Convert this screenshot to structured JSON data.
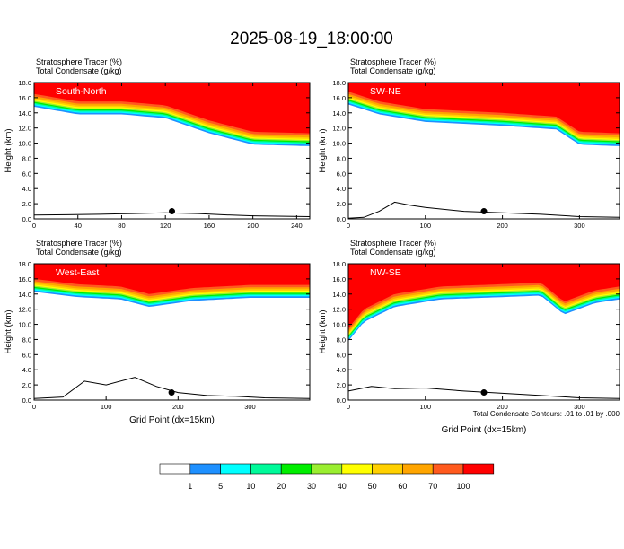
{
  "title": "2025-08-19_18:00:00",
  "colors": {
    "scale": [
      "#ffffff",
      "#1e90ff",
      "#00ffff",
      "#00fa9a",
      "#00ee00",
      "#9aee30",
      "#ffff00",
      "#ffd000",
      "#ffa500",
      "#ff5a1e",
      "#ff0000"
    ],
    "background": "#ffffff"
  },
  "footnote": "Total Condensate Contours: .01 to .01 by .000",
  "legend": {
    "labels": [
      "1",
      "5",
      "10",
      "20",
      "30",
      "40",
      "50",
      "60",
      "70",
      "100"
    ]
  },
  "chart_data": [
    {
      "type": "heatmap",
      "id": "south-north",
      "label": "South-North",
      "header1": "Stratosphere Tracer   (%)",
      "header2": "Total Condensate   (g/kg)",
      "ylabel": "Height (km)",
      "xlabel": "",
      "xlim": [
        0,
        252
      ],
      "ylim": [
        0,
        18
      ],
      "xticks": [
        0,
        40,
        80,
        120,
        160,
        200,
        240
      ],
      "yticks": [
        0,
        2,
        4,
        6,
        8,
        10,
        12,
        14,
        16,
        18
      ],
      "ytick_labels": [
        "0.0",
        "2.0",
        "4.0",
        "6.0",
        "8.0",
        "10.0",
        "12.0",
        "14.0",
        "16.0",
        "18.0"
      ],
      "base_profile": {
        "x": [
          0,
          40,
          80,
          120,
          160,
          200,
          252
        ],
        "y": [
          15.5,
          14.5,
          14.5,
          14.0,
          12.0,
          10.5,
          10.3
        ]
      },
      "terrain": {
        "x": [
          0,
          30,
          60,
          90,
          120,
          150,
          180,
          200,
          252
        ],
        "y": [
          0.5,
          0.55,
          0.6,
          0.7,
          0.8,
          0.7,
          0.5,
          0.4,
          0.3
        ]
      },
      "marker": {
        "x": 126,
        "y": 1.0
      }
    },
    {
      "type": "heatmap",
      "id": "sw-ne",
      "label": "SW-NE",
      "header1": "Stratosphere Tracer   (%)",
      "header2": "Total Condensate   (g/kg)",
      "ylabel": "Height (km)",
      "xlabel": "",
      "xlim": [
        0,
        352
      ],
      "ylim": [
        0,
        18
      ],
      "xticks": [
        0,
        100,
        200,
        300
      ],
      "yticks": [
        0,
        2,
        4,
        6,
        8,
        10,
        12,
        14,
        16,
        18
      ],
      "ytick_labels": [
        "0.0",
        "2.0",
        "4.0",
        "6.0",
        "8.0",
        "10.0",
        "12.0",
        "14.0",
        "16.0",
        "18.0"
      ],
      "base_profile": {
        "x": [
          0,
          40,
          100,
          200,
          270,
          300,
          352
        ],
        "y": [
          15.8,
          14.5,
          13.5,
          13.0,
          12.5,
          10.5,
          10.3
        ]
      },
      "terrain": {
        "x": [
          0,
          20,
          40,
          60,
          80,
          100,
          150,
          200,
          250,
          300,
          352
        ],
        "y": [
          0.1,
          0.2,
          1.0,
          2.2,
          1.8,
          1.5,
          1.0,
          0.8,
          0.6,
          0.3,
          0.2
        ]
      },
      "marker": {
        "x": 176,
        "y": 1.0
      }
    },
    {
      "type": "heatmap",
      "id": "west-east",
      "label": "West-East",
      "header1": "Stratosphere Tracer   (%)",
      "header2": "Total Condensate   (g/kg)",
      "ylabel": "Height (km)",
      "xlabel": "Grid Point (dx=15km)",
      "xlim": [
        0,
        383
      ],
      "ylim": [
        0,
        18
      ],
      "xticks": [
        0,
        100,
        200,
        300
      ],
      "yticks": [
        0,
        2,
        4,
        6,
        8,
        10,
        12,
        14,
        16,
        18
      ],
      "ytick_labels": [
        "0.0",
        "2.0",
        "4.0",
        "6.0",
        "8.0",
        "10.0",
        "12.0",
        "14.0",
        "16.0",
        "18.0"
      ],
      "base_profile": {
        "x": [
          0,
          60,
          120,
          160,
          220,
          300,
          383
        ],
        "y": [
          15.0,
          14.3,
          14.0,
          13.0,
          13.8,
          14.2,
          14.2
        ]
      },
      "terrain": {
        "x": [
          0,
          40,
          70,
          100,
          140,
          170,
          200,
          240,
          280,
          320,
          383
        ],
        "y": [
          0.2,
          0.4,
          2.5,
          2.0,
          3.0,
          1.8,
          1.0,
          0.6,
          0.5,
          0.3,
          0.2
        ]
      },
      "marker": {
        "x": 191,
        "y": 1.0
      }
    },
    {
      "type": "heatmap",
      "id": "nw-se",
      "label": "NW-SE",
      "header1": "Stratosphere Tracer   (%)",
      "header2": "Total Condensate   (g/kg)",
      "ylabel": "Height (km)",
      "xlabel": "Grid Point (dx=15km)",
      "xlim": [
        0,
        352
      ],
      "ylim": [
        0,
        18
      ],
      "xticks": [
        0,
        100,
        200,
        300
      ],
      "yticks": [
        0,
        2,
        4,
        6,
        8,
        10,
        12,
        14,
        16,
        18
      ],
      "ytick_labels": [
        "0.0",
        "2.0",
        "4.0",
        "6.0",
        "8.0",
        "10.0",
        "12.0",
        "14.0",
        "16.0",
        "18.0"
      ],
      "base_profile": {
        "x": [
          0,
          20,
          60,
          120,
          200,
          250,
          280,
          320,
          352
        ],
        "y": [
          8.5,
          11.0,
          13.0,
          14.0,
          14.3,
          14.5,
          12.0,
          13.5,
          14.0
        ]
      },
      "terrain": {
        "x": [
          0,
          30,
          60,
          100,
          150,
          200,
          250,
          300,
          352
        ],
        "y": [
          1.2,
          1.8,
          1.5,
          1.6,
          1.2,
          0.9,
          0.6,
          0.3,
          0.2
        ]
      },
      "marker": {
        "x": 176,
        "y": 1.0
      }
    }
  ]
}
